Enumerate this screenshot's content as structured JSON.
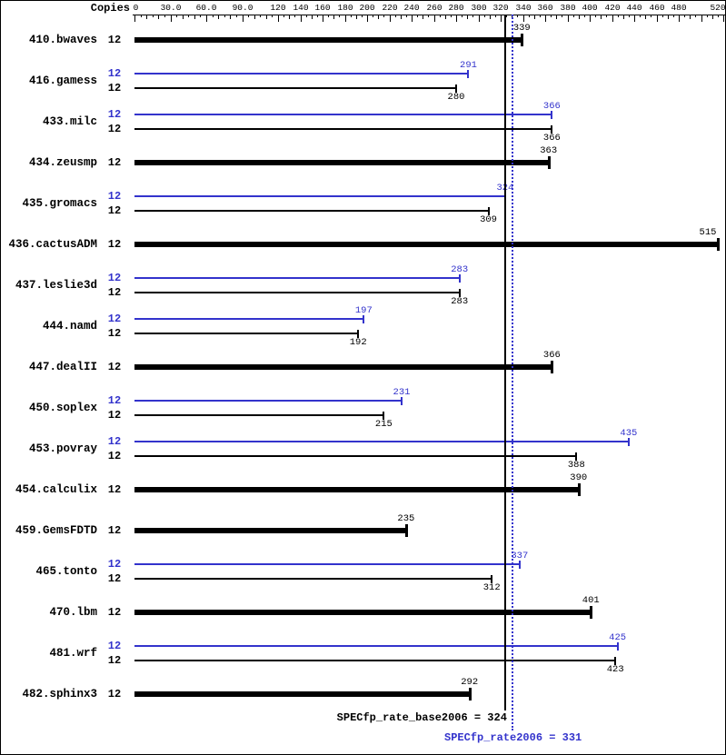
{
  "header": {
    "copies_label": "Copies"
  },
  "colors": {
    "base": "#000000",
    "peak": "#3333cc"
  },
  "chart_data": {
    "type": "bar",
    "orientation": "horizontal",
    "x_axis": {
      "scale": "piecewise-linear",
      "segments": [
        {
          "min": 0,
          "max": 120,
          "tick_step": 30
        },
        {
          "min": 120,
          "max": 520,
          "tick_step": 20
        }
      ],
      "tick_values": [
        0,
        30,
        60,
        90,
        120,
        140,
        160,
        180,
        200,
        220,
        240,
        260,
        280,
        300,
        320,
        340,
        360,
        380,
        400,
        420,
        440,
        460,
        480,
        520
      ],
      "tick_labels": [
        "0",
        "30.0",
        "60.0",
        "90.0",
        "120",
        "140",
        "160",
        "180",
        "200",
        "220",
        "240",
        "260",
        "280",
        "300",
        "320",
        "340",
        "360",
        "380",
        "400",
        "420",
        "440",
        "460",
        "480",
        "520"
      ]
    },
    "benchmarks": [
      {
        "name": "410.bwaves",
        "copies": 12,
        "base": 339,
        "peak": null
      },
      {
        "name": "416.gamess",
        "copies": 12,
        "base": 280,
        "peak": 291
      },
      {
        "name": "433.milc",
        "copies": 12,
        "base": 366,
        "peak": 366
      },
      {
        "name": "434.zeusmp",
        "copies": 12,
        "base": 363,
        "peak": null
      },
      {
        "name": "435.gromacs",
        "copies": 12,
        "base": 309,
        "peak": 324
      },
      {
        "name": "436.cactusADM",
        "copies": 12,
        "base": 515,
        "peak": null
      },
      {
        "name": "437.leslie3d",
        "copies": 12,
        "base": 283,
        "peak": 283
      },
      {
        "name": "444.namd",
        "copies": 12,
        "base": 192,
        "peak": 197
      },
      {
        "name": "447.dealII",
        "copies": 12,
        "base": 366,
        "peak": null
      },
      {
        "name": "450.soplex",
        "copies": 12,
        "base": 215,
        "peak": 231
      },
      {
        "name": "453.povray",
        "copies": 12,
        "base": 388,
        "peak": 435
      },
      {
        "name": "454.calculix",
        "copies": 12,
        "base": 390,
        "peak": null
      },
      {
        "name": "459.GemsFDTD",
        "copies": 12,
        "base": 235,
        "peak": null
      },
      {
        "name": "465.tonto",
        "copies": 12,
        "base": 312,
        "peak": 337
      },
      {
        "name": "470.lbm",
        "copies": 12,
        "base": 401,
        "peak": null
      },
      {
        "name": "481.wrf",
        "copies": 12,
        "base": 423,
        "peak": 425
      },
      {
        "name": "482.sphinx3",
        "copies": 12,
        "base": 292,
        "peak": null
      }
    ],
    "means": {
      "base": {
        "label": "SPECfp_rate_base2006",
        "value": 324
      },
      "peak": {
        "label": "SPECfp_rate2006",
        "value": 331
      }
    }
  }
}
